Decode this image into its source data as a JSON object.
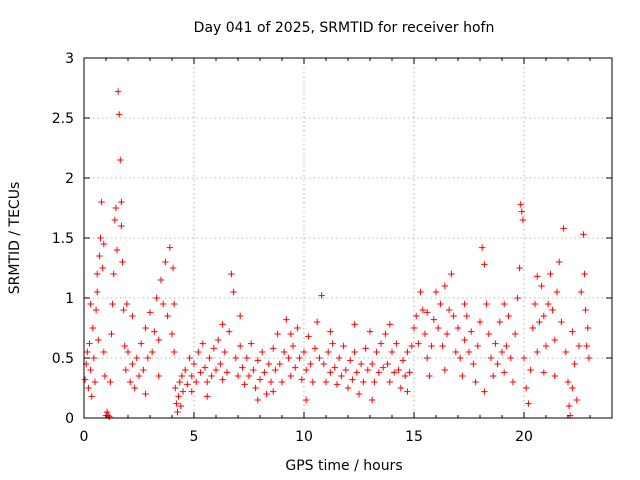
{
  "chart_data": {
    "type": "scatter",
    "title": "Day 041 of 2025, SRMTID for receiver hofn",
    "xlabel": "GPS time / hours",
    "ylabel": "SRMTID / TECUs",
    "xlim": [
      0,
      24
    ],
    "ylim": [
      0,
      3
    ],
    "xticks": [
      0,
      5,
      10,
      15,
      20
    ],
    "yticks": [
      0,
      0.5,
      1,
      1.5,
      2,
      2.5,
      3
    ],
    "xtick_labels": [
      "0",
      "5",
      "10",
      "15",
      "20"
    ],
    "ytick_labels": [
      "0",
      "0.5",
      "1",
      "1.5",
      "2",
      "2.5",
      "3"
    ],
    "grid": true,
    "marker": "+",
    "color": "#ff0000",
    "series": [
      {
        "name": "SRMTID",
        "points": [
          [
            0.05,
            0.32
          ],
          [
            0.1,
            0.45
          ],
          [
            0.15,
            0.55
          ],
          [
            0.2,
            0.25
          ],
          [
            0.25,
            0.62
          ],
          [
            0.3,
            0.4
          ],
          [
            0.35,
            0.18
          ],
          [
            0.4,
            0.75
          ],
          [
            0.45,
            0.5
          ],
          [
            0.5,
            0.3
          ],
          [
            0.55,
            0.9
          ],
          [
            0.6,
            1.05
          ],
          [
            0.65,
            0.65
          ],
          [
            0.7,
            1.35
          ],
          [
            0.75,
            1.5
          ],
          [
            0.8,
            1.8
          ],
          [
            0.85,
            1.25
          ],
          [
            0.9,
            0.55
          ],
          [
            0.95,
            0.35
          ],
          [
            1.0,
            0.02
          ],
          [
            1.05,
            0.05
          ],
          [
            1.1,
            0.02
          ],
          [
            1.15,
            0.01
          ],
          [
            1.2,
            0.3
          ],
          [
            1.25,
            0.7
          ],
          [
            1.3,
            0.95
          ],
          [
            1.35,
            1.2
          ],
          [
            1.4,
            1.65
          ],
          [
            1.45,
            1.75
          ],
          [
            1.5,
            1.4
          ],
          [
            1.55,
            2.72
          ],
          [
            1.6,
            2.53
          ],
          [
            1.65,
            2.15
          ],
          [
            1.7,
            1.8
          ],
          [
            1.75,
            1.3
          ],
          [
            1.8,
            0.9
          ],
          [
            1.85,
            0.6
          ],
          [
            1.9,
            0.4
          ],
          [
            1.95,
            0.95
          ],
          [
            2.0,
            0.55
          ],
          [
            2.1,
            0.3
          ],
          [
            2.2,
            0.45
          ],
          [
            2.3,
            0.25
          ],
          [
            2.4,
            0.5
          ],
          [
            2.5,
            0.35
          ],
          [
            2.6,
            0.62
          ],
          [
            2.7,
            0.4
          ],
          [
            2.8,
            0.75
          ],
          [
            2.9,
            0.5
          ],
          [
            3.0,
            0.88
          ],
          [
            3.1,
            0.55
          ],
          [
            3.2,
            0.72
          ],
          [
            3.3,
            1.0
          ],
          [
            3.4,
            0.65
          ],
          [
            3.5,
            1.15
          ],
          [
            3.6,
            0.95
          ],
          [
            3.7,
            1.3
          ],
          [
            3.8,
            0.85
          ],
          [
            3.9,
            1.42
          ],
          [
            4.0,
            0.7
          ],
          [
            4.05,
            1.25
          ],
          [
            4.1,
            0.55
          ],
          [
            4.15,
            0.25
          ],
          [
            4.2,
            0.12
          ],
          [
            4.25,
            0.05
          ],
          [
            4.3,
            0.18
          ],
          [
            4.35,
            0.3
          ],
          [
            4.4,
            0.1
          ],
          [
            4.45,
            0.35
          ],
          [
            4.5,
            0.22
          ],
          [
            4.6,
            0.4
          ],
          [
            4.7,
            0.28
          ],
          [
            4.8,
            0.5
          ],
          [
            4.9,
            0.35
          ],
          [
            5.0,
            0.45
          ],
          [
            5.1,
            0.3
          ],
          [
            5.2,
            0.55
          ],
          [
            5.3,
            0.38
          ],
          [
            5.4,
            0.62
          ],
          [
            5.5,
            0.42
          ],
          [
            5.6,
            0.3
          ],
          [
            5.7,
            0.5
          ],
          [
            5.8,
            0.35
          ],
          [
            5.9,
            0.58
          ],
          [
            6.0,
            0.4
          ],
          [
            6.1,
            0.65
          ],
          [
            6.2,
            0.45
          ],
          [
            6.3,
            0.32
          ],
          [
            6.4,
            0.55
          ],
          [
            6.5,
            0.38
          ],
          [
            6.6,
            0.72
          ],
          [
            6.7,
            1.2
          ],
          [
            6.8,
            1.05
          ],
          [
            6.9,
            0.5
          ],
          [
            7.0,
            0.35
          ],
          [
            7.1,
            0.6
          ],
          [
            7.2,
            0.42
          ],
          [
            7.3,
            0.28
          ],
          [
            7.4,
            0.5
          ],
          [
            7.5,
            0.35
          ],
          [
            7.6,
            0.62
          ],
          [
            7.7,
            0.4
          ],
          [
            7.8,
            0.25
          ],
          [
            7.9,
            0.48
          ],
          [
            8.0,
            0.32
          ],
          [
            8.1,
            0.55
          ],
          [
            8.2,
            0.38
          ],
          [
            8.3,
            0.2
          ],
          [
            8.4,
            0.45
          ],
          [
            8.5,
            0.3
          ],
          [
            8.6,
            0.58
          ],
          [
            8.7,
            0.4
          ],
          [
            8.8,
            0.7
          ],
          [
            8.9,
            0.45
          ],
          [
            9.0,
            0.3
          ],
          [
            9.1,
            0.55
          ],
          [
            9.2,
            0.82
          ],
          [
            9.3,
            0.5
          ],
          [
            9.4,
            0.35
          ],
          [
            9.5,
            0.6
          ],
          [
            9.6,
            0.42
          ],
          [
            9.7,
            0.75
          ],
          [
            9.8,
            0.5
          ],
          [
            9.9,
            0.32
          ],
          [
            10.0,
            0.55
          ],
          [
            10.1,
            0.4
          ],
          [
            10.2,
            0.68
          ],
          [
            10.3,
            0.45
          ],
          [
            10.4,
            0.3
          ],
          [
            10.5,
            0.58
          ],
          [
            10.6,
            0.8
          ],
          [
            10.7,
            0.5
          ],
          [
            10.8,
            1.02
          ],
          [
            10.9,
            0.45
          ],
          [
            11.0,
            0.3
          ],
          [
            11.1,
            0.55
          ],
          [
            11.2,
            0.38
          ],
          [
            11.3,
            0.62
          ],
          [
            11.4,
            0.42
          ],
          [
            11.5,
            0.28
          ],
          [
            11.6,
            0.5
          ],
          [
            11.7,
            0.35
          ],
          [
            11.8,
            0.6
          ],
          [
            11.9,
            0.4
          ],
          [
            12.0,
            0.25
          ],
          [
            12.1,
            0.48
          ],
          [
            12.2,
            0.32
          ],
          [
            12.3,
            0.55
          ],
          [
            12.4,
            0.38
          ],
          [
            12.5,
            0.2
          ],
          [
            12.6,
            0.45
          ],
          [
            12.7,
            0.3
          ],
          [
            12.8,
            0.58
          ],
          [
            12.9,
            0.4
          ],
          [
            13.0,
            0.72
          ],
          [
            13.1,
            0.45
          ],
          [
            13.2,
            0.3
          ],
          [
            13.3,
            0.55
          ],
          [
            13.4,
            0.38
          ],
          [
            13.5,
            0.62
          ],
          [
            13.6,
            0.42
          ],
          [
            13.7,
            0.7
          ],
          [
            13.8,
            0.45
          ],
          [
            13.9,
            0.3
          ],
          [
            14.0,
            0.55
          ],
          [
            14.1,
            0.38
          ],
          [
            14.2,
            0.62
          ],
          [
            14.3,
            0.4
          ],
          [
            14.4,
            0.25
          ],
          [
            14.5,
            0.48
          ],
          [
            14.6,
            0.35
          ],
          [
            14.7,
            0.55
          ],
          [
            14.8,
            0.38
          ],
          [
            14.9,
            0.6
          ],
          [
            15.0,
            0.75
          ],
          [
            15.1,
            0.85
          ],
          [
            15.2,
            0.62
          ],
          [
            15.3,
            1.05
          ],
          [
            15.4,
            0.9
          ],
          [
            15.5,
            0.7
          ],
          [
            15.6,
            0.5
          ],
          [
            15.7,
            0.35
          ],
          [
            15.8,
            0.6
          ],
          [
            15.9,
            0.82
          ],
          [
            16.0,
            1.05
          ],
          [
            16.1,
            0.75
          ],
          [
            16.2,
            0.95
          ],
          [
            16.3,
            0.6
          ],
          [
            16.4,
            0.4
          ],
          [
            16.5,
            0.7
          ],
          [
            16.6,
            0.9
          ],
          [
            16.7,
            1.2
          ],
          [
            16.8,
            0.85
          ],
          [
            16.9,
            0.55
          ],
          [
            17.0,
            0.75
          ],
          [
            17.1,
            0.5
          ],
          [
            17.2,
            0.35
          ],
          [
            17.3,
            0.65
          ],
          [
            17.4,
            0.85
          ],
          [
            17.5,
            0.55
          ],
          [
            17.6,
            0.72
          ],
          [
            17.7,
            0.45
          ],
          [
            17.8,
            0.3
          ],
          [
            17.9,
            0.6
          ],
          [
            18.0,
            0.8
          ],
          [
            18.1,
            1.42
          ],
          [
            18.2,
            1.28
          ],
          [
            18.3,
            0.95
          ],
          [
            18.4,
            0.7
          ],
          [
            18.5,
            0.5
          ],
          [
            18.6,
            0.35
          ],
          [
            18.7,
            0.62
          ],
          [
            18.8,
            0.45
          ],
          [
            18.9,
            0.8
          ],
          [
            19.0,
            0.55
          ],
          [
            19.1,
            0.38
          ],
          [
            19.2,
            0.6
          ],
          [
            19.3,
            0.85
          ],
          [
            19.4,
            0.5
          ],
          [
            19.5,
            0.3
          ],
          [
            19.6,
            0.7
          ],
          [
            19.7,
            1.0
          ],
          [
            19.8,
            1.25
          ],
          [
            19.85,
            1.78
          ],
          [
            19.9,
            1.72
          ],
          [
            19.95,
            1.65
          ],
          [
            20.0,
            0.5
          ],
          [
            20.1,
            0.25
          ],
          [
            20.2,
            0.12
          ],
          [
            20.3,
            0.4
          ],
          [
            20.4,
            0.75
          ],
          [
            20.5,
            0.95
          ],
          [
            20.6,
            0.55
          ],
          [
            20.7,
            0.8
          ],
          [
            20.8,
            1.1
          ],
          [
            20.9,
            0.85
          ],
          [
            21.0,
            0.6
          ],
          [
            21.1,
            0.95
          ],
          [
            21.2,
            1.2
          ],
          [
            21.3,
            0.9
          ],
          [
            21.4,
            0.65
          ],
          [
            21.5,
            1.05
          ],
          [
            21.6,
            1.3
          ],
          [
            21.7,
            0.8
          ],
          [
            21.8,
            1.58
          ],
          [
            21.9,
            0.55
          ],
          [
            22.0,
            0.3
          ],
          [
            22.05,
            0.1
          ],
          [
            22.1,
            0.02
          ],
          [
            22.2,
            0.25
          ],
          [
            22.3,
            0.45
          ],
          [
            22.4,
            0.15
          ],
          [
            22.5,
            0.6
          ],
          [
            22.6,
            1.05
          ],
          [
            22.7,
            1.53
          ],
          [
            22.75,
            1.2
          ],
          [
            22.8,
            0.9
          ],
          [
            22.85,
            0.6
          ],
          [
            22.9,
            0.75
          ],
          [
            22.95,
            0.5
          ],
          [
            0.3,
            0.95
          ],
          [
            0.6,
            1.2
          ],
          [
            0.9,
            1.45
          ],
          [
            1.7,
            1.6
          ],
          [
            2.2,
            0.85
          ],
          [
            2.8,
            0.2
          ],
          [
            3.4,
            0.35
          ],
          [
            4.1,
            0.95
          ],
          [
            4.9,
            0.22
          ],
          [
            5.6,
            0.18
          ],
          [
            6.3,
            0.78
          ],
          [
            7.1,
            0.85
          ],
          [
            7.9,
            0.15
          ],
          [
            8.6,
            0.22
          ],
          [
            9.4,
            0.7
          ],
          [
            10.1,
            0.15
          ],
          [
            11.2,
            0.72
          ],
          [
            12.3,
            0.78
          ],
          [
            13.1,
            0.15
          ],
          [
            13.9,
            0.78
          ],
          [
            14.7,
            0.22
          ],
          [
            15.6,
            0.88
          ],
          [
            16.4,
            1.1
          ],
          [
            17.3,
            0.95
          ],
          [
            18.2,
            0.22
          ],
          [
            19.1,
            0.95
          ],
          [
            20.6,
            1.18
          ],
          [
            21.4,
            0.35
          ],
          [
            22.2,
            0.72
          ],
          [
            20.9,
            0.38
          ]
        ]
      }
    ]
  }
}
